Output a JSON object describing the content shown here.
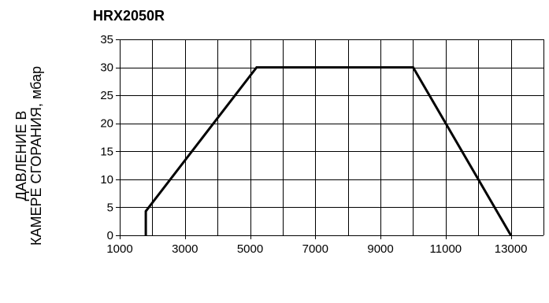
{
  "chart_data": {
    "type": "line",
    "title": "HRX2050R",
    "xlabel": "",
    "ylabel_lines": [
      "ДАВЛЕНИЕ В",
      "КАМЕРЕ СГОРАНИЯ, мбар"
    ],
    "xlim": [
      1000,
      14000
    ],
    "ylim": [
      0,
      35
    ],
    "x_ticks": [
      1000,
      3000,
      5000,
      7000,
      9000,
      11000,
      13000
    ],
    "y_ticks": [
      0,
      5,
      10,
      15,
      20,
      25,
      30,
      35
    ],
    "x_grid_step": 1000,
    "y_grid_step": 5,
    "grid": true,
    "series": [
      {
        "x": [
          1800,
          1800,
          5200,
          10000,
          13000
        ],
        "y": [
          0,
          4.3,
          30,
          30,
          0
        ]
      }
    ]
  }
}
